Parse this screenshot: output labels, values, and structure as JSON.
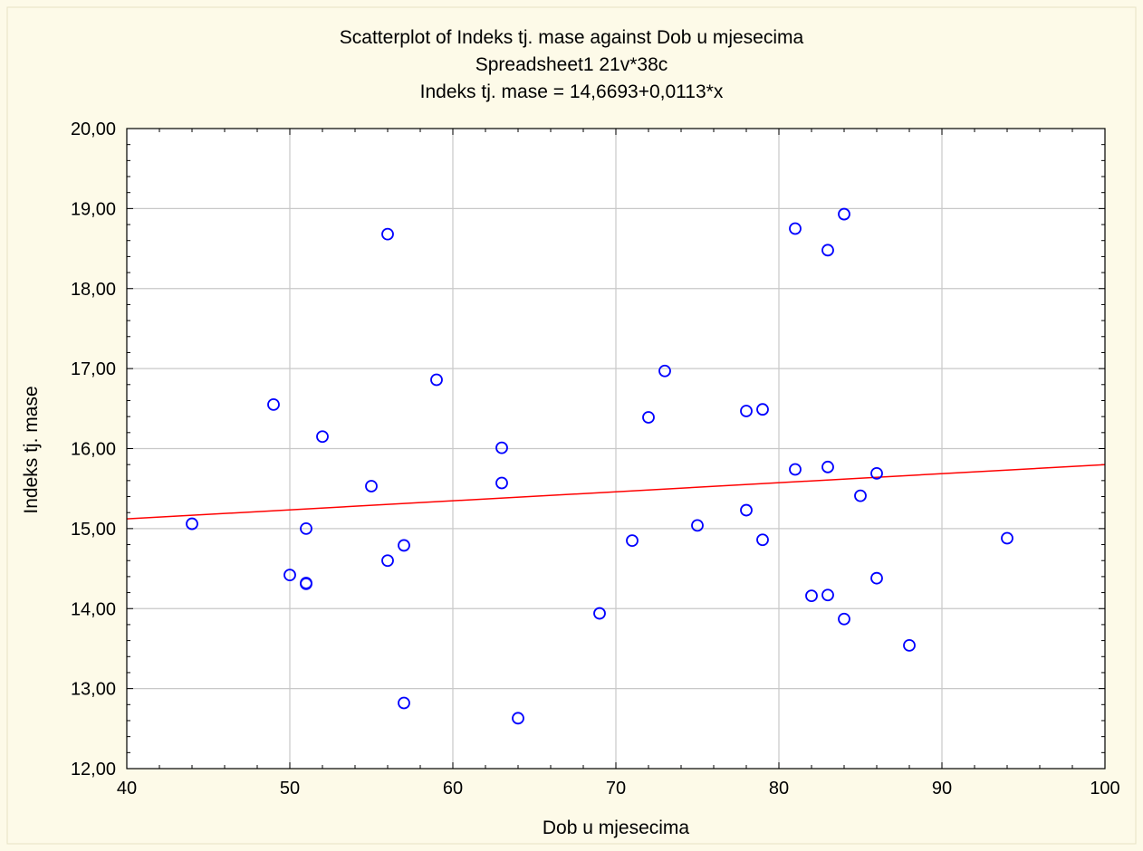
{
  "chart_data": {
    "type": "scatter",
    "title_lines": [
      "Scatterplot of Indeks tj. mase against Dob u mjesecima",
      "Spreadsheet1 21v*38c",
      "Indeks tj. mase = 14,6693+0,0113*x"
    ],
    "xlabel": "Dob u mjesecima",
    "ylabel": "Indeks tj. mase",
    "xlim": [
      40,
      100
    ],
    "ylim": [
      12,
      20
    ],
    "x_ticks": [
      40,
      50,
      60,
      70,
      80,
      90,
      100
    ],
    "x_tick_labels": [
      "40",
      "50",
      "60",
      "70",
      "80",
      "90",
      "100"
    ],
    "y_ticks": [
      12,
      13,
      14,
      15,
      16,
      17,
      18,
      19,
      20
    ],
    "y_tick_labels": [
      "12,00",
      "13,00",
      "14,00",
      "15,00",
      "16,00",
      "17,00",
      "18,00",
      "19,00",
      "20,00"
    ],
    "grid": true,
    "regression": {
      "intercept": 14.6693,
      "slope": 0.0113
    },
    "colors": {
      "point": "#0000ff",
      "line": "#ff0000",
      "grid": "#c8c8c8",
      "plot_background": "#ffffff",
      "background": "#fdfae8"
    },
    "points": [
      {
        "x": 44,
        "y": 15.06
      },
      {
        "x": 49,
        "y": 16.55
      },
      {
        "x": 50,
        "y": 14.42
      },
      {
        "x": 51,
        "y": 15.0
      },
      {
        "x": 51,
        "y": 14.31
      },
      {
        "x": 51,
        "y": 14.32
      },
      {
        "x": 52,
        "y": 16.15
      },
      {
        "x": 55,
        "y": 15.53
      },
      {
        "x": 56,
        "y": 18.68
      },
      {
        "x": 56,
        "y": 14.6
      },
      {
        "x": 57,
        "y": 14.79
      },
      {
        "x": 57,
        "y": 12.82
      },
      {
        "x": 59,
        "y": 16.86
      },
      {
        "x": 63,
        "y": 16.01
      },
      {
        "x": 63,
        "y": 15.57
      },
      {
        "x": 64,
        "y": 12.63
      },
      {
        "x": 69,
        "y": 13.94
      },
      {
        "x": 71,
        "y": 14.85
      },
      {
        "x": 72,
        "y": 16.39
      },
      {
        "x": 73,
        "y": 16.97
      },
      {
        "x": 75,
        "y": 15.04
      },
      {
        "x": 78,
        "y": 16.47
      },
      {
        "x": 78,
        "y": 15.23
      },
      {
        "x": 79,
        "y": 16.49
      },
      {
        "x": 79,
        "y": 14.86
      },
      {
        "x": 81,
        "y": 18.75
      },
      {
        "x": 81,
        "y": 15.74
      },
      {
        "x": 82,
        "y": 14.16
      },
      {
        "x": 83,
        "y": 18.48
      },
      {
        "x": 83,
        "y": 15.77
      },
      {
        "x": 83,
        "y": 14.17
      },
      {
        "x": 84,
        "y": 18.93
      },
      {
        "x": 84,
        "y": 13.87
      },
      {
        "x": 85,
        "y": 15.41
      },
      {
        "x": 86,
        "y": 15.69
      },
      {
        "x": 86,
        "y": 14.38
      },
      {
        "x": 88,
        "y": 13.54
      },
      {
        "x": 94,
        "y": 14.88
      }
    ]
  }
}
